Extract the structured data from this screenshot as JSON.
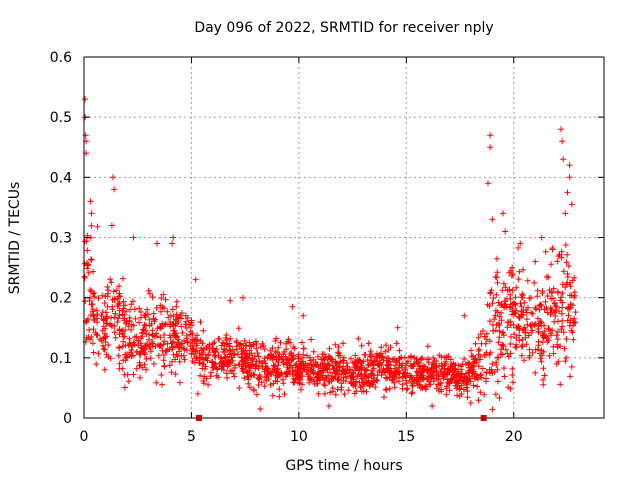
{
  "chart_data": {
    "type": "scatter",
    "title": "Day 096 of 2022, SRMTID for receiver nply",
    "xlabel": "GPS time / hours",
    "ylabel": "SRMTID / TECUs",
    "xlim": [
      0,
      24.2
    ],
    "ylim": [
      0,
      0.6
    ],
    "xticks": [
      0,
      5,
      10,
      15,
      20
    ],
    "yticks": [
      0,
      0.1,
      0.2,
      0.3,
      0.4,
      0.5,
      0.6
    ],
    "grid": true,
    "marker": "+",
    "color": "#ff0000",
    "gap_markers_x": [
      5.35,
      18.6
    ],
    "envelope": {
      "x": [
        0.0,
        0.15,
        0.5,
        1.0,
        1.5,
        2.0,
        2.5,
        3.0,
        3.5,
        4.0,
        4.5,
        5.0,
        5.5,
        6.0,
        7.0,
        8.0,
        9.0,
        10.0,
        11.0,
        12.0,
        13.0,
        14.0,
        15.0,
        16.0,
        17.0,
        17.8,
        18.4,
        18.9,
        19.5,
        20.0,
        20.5,
        21.0,
        21.5,
        22.0,
        22.5,
        22.9
      ],
      "center": [
        0.2,
        0.21,
        0.16,
        0.14,
        0.16,
        0.14,
        0.13,
        0.12,
        0.15,
        0.13,
        0.14,
        0.13,
        0.1,
        0.1,
        0.1,
        0.085,
        0.085,
        0.085,
        0.08,
        0.08,
        0.08,
        0.08,
        0.075,
        0.075,
        0.07,
        0.065,
        0.09,
        0.13,
        0.15,
        0.17,
        0.16,
        0.15,
        0.16,
        0.18,
        0.18,
        0.17
      ],
      "spread": [
        0.1,
        0.12,
        0.07,
        0.06,
        0.08,
        0.06,
        0.05,
        0.05,
        0.07,
        0.05,
        0.05,
        0.05,
        0.04,
        0.04,
        0.035,
        0.035,
        0.035,
        0.035,
        0.035,
        0.035,
        0.035,
        0.035,
        0.03,
        0.03,
        0.03,
        0.025,
        0.04,
        0.09,
        0.08,
        0.08,
        0.07,
        0.07,
        0.08,
        0.09,
        0.09,
        0.07
      ]
    },
    "peaks": [
      {
        "x": 0.05,
        "y": 0.53
      },
      {
        "x": 0.05,
        "y": 0.5
      },
      {
        "x": 0.08,
        "y": 0.47
      },
      {
        "x": 0.1,
        "y": 0.46
      },
      {
        "x": 0.1,
        "y": 0.44
      },
      {
        "x": 0.3,
        "y": 0.36
      },
      {
        "x": 0.35,
        "y": 0.34
      },
      {
        "x": 1.35,
        "y": 0.4
      },
      {
        "x": 1.4,
        "y": 0.38
      },
      {
        "x": 1.3,
        "y": 0.32
      },
      {
        "x": 2.3,
        "y": 0.3
      },
      {
        "x": 3.4,
        "y": 0.29
      },
      {
        "x": 4.1,
        "y": 0.29
      },
      {
        "x": 4.15,
        "y": 0.3
      },
      {
        "x": 5.2,
        "y": 0.23
      },
      {
        "x": 6.8,
        "y": 0.195
      },
      {
        "x": 7.4,
        "y": 0.2
      },
      {
        "x": 9.7,
        "y": 0.185
      },
      {
        "x": 10.2,
        "y": 0.17
      },
      {
        "x": 14.6,
        "y": 0.15
      },
      {
        "x": 17.7,
        "y": 0.17
      },
      {
        "x": 18.9,
        "y": 0.47
      },
      {
        "x": 18.9,
        "y": 0.45
      },
      {
        "x": 18.8,
        "y": 0.39
      },
      {
        "x": 19.0,
        "y": 0.33
      },
      {
        "x": 19.5,
        "y": 0.34
      },
      {
        "x": 19.6,
        "y": 0.31
      },
      {
        "x": 22.2,
        "y": 0.48
      },
      {
        "x": 22.25,
        "y": 0.46
      },
      {
        "x": 22.3,
        "y": 0.43
      },
      {
        "x": 22.6,
        "y": 0.42
      },
      {
        "x": 22.6,
        "y": 0.4
      },
      {
        "x": 22.5,
        "y": 0.375
      },
      {
        "x": 22.7,
        "y": 0.355
      },
      {
        "x": 22.4,
        "y": 0.34
      },
      {
        "x": 21.3,
        "y": 0.3
      },
      {
        "x": 20.3,
        "y": 0.29
      },
      {
        "x": 21.0,
        "y": 0.26
      },
      {
        "x": 18.0,
        "y": 0.025
      },
      {
        "x": 16.2,
        "y": 0.02
      },
      {
        "x": 8.2,
        "y": 0.015
      },
      {
        "x": 11.4,
        "y": 0.02
      },
      {
        "x": 5.3,
        "y": 0.04
      },
      {
        "x": 2.0,
        "y": 0.1
      },
      {
        "x": 21.0,
        "y": 0.075
      },
      {
        "x": 22.0,
        "y": 0.09
      },
      {
        "x": 22.7,
        "y": 0.085
      }
    ],
    "n_points": 1900,
    "random_seed": 96
  }
}
